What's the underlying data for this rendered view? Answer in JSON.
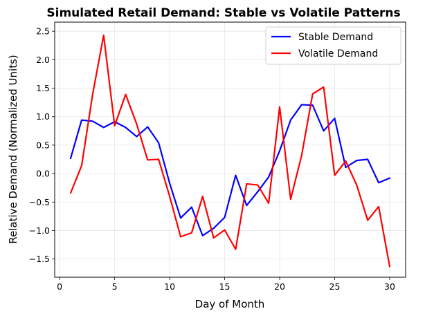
{
  "chart_data": {
    "type": "line",
    "title": "Simulated Retail Demand: Stable vs Volatile Patterns",
    "xlabel": "Day of Month",
    "ylabel": "Relative Demand (Normalized Units)",
    "xlim": [
      -0.45,
      31.45
    ],
    "ylim": [
      -1.82,
      2.66
    ],
    "xticks": [
      0,
      5,
      10,
      15,
      20,
      25,
      30
    ],
    "xtick_labels": [
      "0",
      "5",
      "10",
      "15",
      "20",
      "25",
      "30"
    ],
    "yticks": [
      -1.5,
      -1.0,
      -0.5,
      0.0,
      0.5,
      1.0,
      1.5,
      2.0,
      2.5
    ],
    "ytick_labels": [
      "−1.5",
      "−1.0",
      "−0.5",
      "0.0",
      "0.5",
      "1.0",
      "1.5",
      "2.0",
      "2.5"
    ],
    "grid": true,
    "legend_position": "top-right",
    "x": [
      1,
      2,
      3,
      4,
      5,
      6,
      7,
      8,
      9,
      10,
      11,
      12,
      13,
      14,
      15,
      16,
      17,
      18,
      19,
      20,
      21,
      22,
      23,
      24,
      25,
      26,
      27,
      28,
      29,
      30
    ],
    "series": [
      {
        "name": "Stable Demand",
        "color": "#0000ff",
        "values": [
          0.27,
          0.94,
          0.92,
          0.81,
          0.91,
          0.81,
          0.65,
          0.82,
          0.54,
          -0.17,
          -0.78,
          -0.59,
          -1.09,
          -0.96,
          -0.77,
          -0.03,
          -0.56,
          -0.32,
          -0.06,
          0.4,
          0.94,
          1.21,
          1.2,
          0.75,
          0.97,
          0.11,
          0.23,
          0.25,
          -0.16,
          -0.08
        ]
      },
      {
        "name": "Volatile Demand",
        "color": "#ff0000",
        "values": [
          -0.34,
          0.14,
          1.39,
          2.43,
          0.84,
          1.39,
          0.87,
          0.24,
          0.25,
          -0.4,
          -1.11,
          -1.04,
          -0.4,
          -1.13,
          -0.99,
          -1.33,
          -0.18,
          -0.2,
          -0.52,
          1.17,
          -0.45,
          0.32,
          1.4,
          1.52,
          -0.03,
          0.22,
          -0.2,
          -0.82,
          -0.58,
          -1.63
        ]
      }
    ]
  }
}
